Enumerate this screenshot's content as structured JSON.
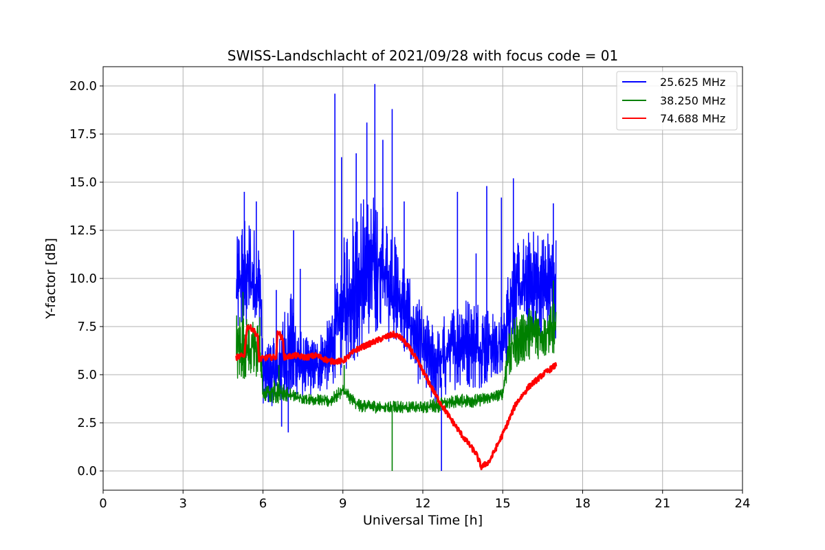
{
  "chart_data": {
    "type": "line",
    "title": "SWISS-Landschlacht of 2021/09/28 with focus code = 01",
    "xlabel": "Universal Time [h]",
    "ylabel": "Y-factor [dB]",
    "xlim": [
      0,
      24
    ],
    "ylim": [
      -1,
      21
    ],
    "xticks": [
      0,
      3,
      6,
      9,
      12,
      15,
      18,
      21,
      24
    ],
    "xtick_labels": [
      "0",
      "3",
      "6",
      "9",
      "12",
      "15",
      "18",
      "21",
      "24"
    ],
    "yticks": [
      0,
      2.5,
      5,
      7.5,
      10,
      12.5,
      15,
      17.5,
      20
    ],
    "ytick_labels": [
      "0.0",
      "2.5",
      "5.0",
      "7.5",
      "10.0",
      "12.5",
      "15.0",
      "17.5",
      "20.0"
    ],
    "grid": true,
    "legend_position": "top-right",
    "series": [
      {
        "name": "25.625 MHz",
        "color": "#0000ff",
        "style": "noisy",
        "x": [
          5.0,
          5.3,
          5.6,
          5.9,
          6.0,
          6.5,
          7.0,
          7.5,
          8.0,
          8.5,
          9.0,
          9.5,
          10.0,
          10.5,
          11.0,
          11.5,
          12.0,
          12.5,
          13.0,
          13.5,
          14.0,
          14.5,
          15.0,
          15.3,
          15.6,
          16.0,
          16.5,
          17.0
        ],
        "low": [
          7.0,
          7.0,
          7.0,
          7.5,
          3.5,
          3.3,
          3.5,
          3.8,
          4.0,
          4.2,
          5.0,
          5.8,
          6.5,
          6.8,
          6.6,
          5.5,
          4.0,
          3.2,
          4.0,
          4.5,
          4.2,
          4.5,
          4.8,
          6.5,
          6.8,
          6.8,
          6.8,
          6.8
        ],
        "high": [
          12.0,
          13.5,
          13.0,
          11.5,
          6.5,
          7.0,
          9.5,
          7.0,
          6.8,
          8.0,
          12.0,
          14.0,
          14.5,
          14.0,
          12.0,
          10.0,
          8.5,
          7.5,
          8.5,
          9.0,
          9.0,
          8.5,
          8.0,
          11.5,
          12.0,
          12.5,
          12.5,
          12.5
        ],
        "spikes": [
          [
            5.3,
            14.5
          ],
          [
            5.75,
            14.0
          ],
          [
            6.5,
            9.4
          ],
          [
            7.15,
            12.5
          ],
          [
            7.4,
            10.5
          ],
          [
            8.7,
            19.6
          ],
          [
            8.95,
            16.3
          ],
          [
            9.5,
            16.5
          ],
          [
            9.9,
            18.1
          ],
          [
            10.2,
            20.1
          ],
          [
            10.5,
            17.2
          ],
          [
            10.85,
            18.8
          ],
          [
            11.3,
            14.0
          ],
          [
            12.7,
            0.0
          ],
          [
            13.3,
            14.5
          ],
          [
            14.0,
            11.3
          ],
          [
            14.4,
            14.8
          ],
          [
            14.95,
            14.2
          ],
          [
            15.4,
            15.2
          ],
          [
            16.9,
            13.9
          ],
          [
            6.95,
            2.0
          ],
          [
            6.7,
            2.3
          ]
        ]
      },
      {
        "name": "38.250 MHz",
        "color": "#008000",
        "style": "noisy",
        "x": [
          5.0,
          5.3,
          5.6,
          5.9,
          6.0,
          6.5,
          7.0,
          7.5,
          8.0,
          8.5,
          9.0,
          9.5,
          10.0,
          10.5,
          11.0,
          11.5,
          12.0,
          12.5,
          13.0,
          13.5,
          14.0,
          14.5,
          15.0,
          15.2,
          15.6,
          16.0,
          16.5,
          17.0
        ],
        "low": [
          4.5,
          4.8,
          4.6,
          4.5,
          3.6,
          3.5,
          3.6,
          3.5,
          3.4,
          3.3,
          3.8,
          3.1,
          3.0,
          3.0,
          3.0,
          3.0,
          3.0,
          3.0,
          3.2,
          3.3,
          3.3,
          3.5,
          3.7,
          4.8,
          5.5,
          5.8,
          5.8,
          6.0
        ],
        "high": [
          8.5,
          8.0,
          7.8,
          8.3,
          4.3,
          4.8,
          4.3,
          4.0,
          4.0,
          3.9,
          4.6,
          3.8,
          3.7,
          3.6,
          3.7,
          3.6,
          3.6,
          3.8,
          3.9,
          4.0,
          4.0,
          4.1,
          4.3,
          7.5,
          8.2,
          8.5,
          8.5,
          9.0
        ],
        "spikes": [
          [
            10.85,
            0.0
          ],
          [
            5.25,
            9.3
          ],
          [
            16.9,
            9.9
          ],
          [
            6.6,
            5.5
          ],
          [
            9.05,
            5.5
          ]
        ]
      },
      {
        "name": "74.688 MHz",
        "color": "#ff0000",
        "style": "line",
        "x": [
          5.0,
          5.3,
          5.4,
          5.6,
          5.8,
          5.85,
          6.2,
          6.5,
          6.55,
          6.75,
          6.8,
          7.2,
          7.6,
          8.0,
          8.5,
          9.0,
          9.5,
          10.0,
          10.5,
          10.9,
          11.2,
          11.6,
          12.0,
          12.5,
          13.0,
          13.5,
          14.0,
          14.2,
          14.5,
          15.0,
          15.5,
          16.0,
          16.5,
          17.0
        ],
        "y": [
          5.9,
          6.0,
          7.5,
          7.4,
          7.0,
          5.8,
          5.9,
          5.9,
          7.3,
          6.8,
          5.9,
          6.0,
          5.9,
          6.0,
          5.7,
          5.7,
          6.3,
          6.6,
          6.9,
          7.1,
          6.9,
          6.2,
          5.2,
          3.9,
          2.8,
          1.8,
          0.9,
          0.2,
          0.5,
          1.9,
          3.5,
          4.4,
          5.0,
          5.5
        ]
      }
    ]
  }
}
